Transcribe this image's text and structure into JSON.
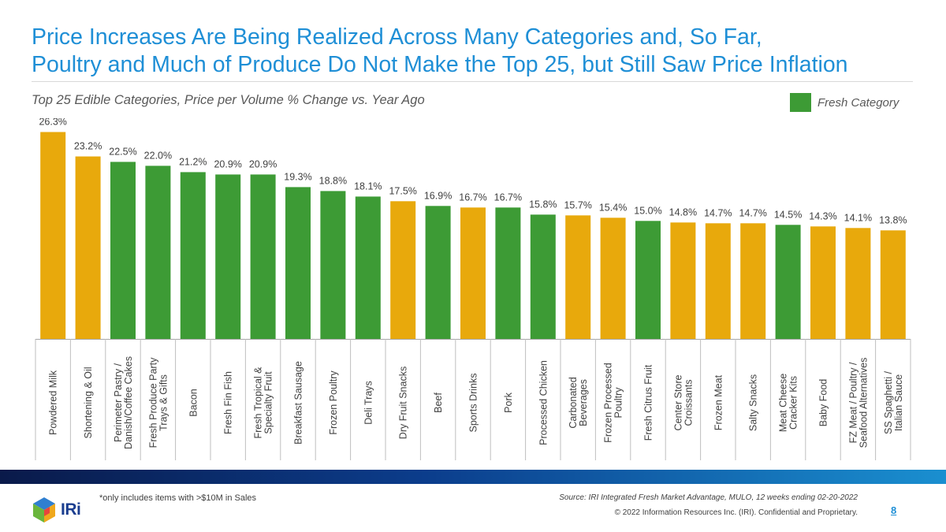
{
  "header": {
    "title_line1": "Price Increases Are Being Realized Across Many Categories and, So Far,",
    "title_line2": "Poultry and Much of Produce Do Not Make the Top 25, but Still Saw Price Inflation",
    "subtitle": "Top 25 Edible Categories, Price per Volume % Change vs. Year Ago"
  },
  "legend": {
    "label": "Fresh Category",
    "color": "#3d9b35"
  },
  "colors": {
    "fresh": "#3d9b35",
    "other": "#e8a90c"
  },
  "chart_data": {
    "type": "bar",
    "title": "Top 25 Edible Categories, Price per Volume % Change vs. Year Ago",
    "categories": [
      "Powdered Milk",
      "Shortening & Oil",
      "Perimeter Pastry / Danish/Coffee Cakes",
      "Fresh Produce Party Trays & Gifts",
      "Bacon",
      "Fresh Fin Fish",
      "Fresh Tropical & Specialty Fruit",
      "Breakfast Sausage",
      "Frozen Poultry",
      "Deli Trays",
      "Dry Fruit Snacks",
      "Beef",
      "Sports Drinks",
      "Pork",
      "Processed Chicken",
      "Carbonated Beverages",
      "Frozen Processed Poultry",
      "Fresh Citrus Fruit",
      "Center Store Croissants",
      "Frozen Meat",
      "Salty Snacks",
      "Meat Cheese Cracker Kits",
      "Baby Food",
      "FZ Meat / Poultry / Seafood Alternatives",
      "SS Spaghetti / Italian Sauce"
    ],
    "category_lines": [
      [
        "Powdered Milk"
      ],
      [
        "Shortening & Oil"
      ],
      [
        "Perimeter Pastry /",
        "Danish/Coffee Cakes"
      ],
      [
        "Fresh Produce Party",
        "Trays & Gifts"
      ],
      [
        "Bacon"
      ],
      [
        "Fresh Fin Fish"
      ],
      [
        "Fresh Tropical &",
        "Specialty Fruit"
      ],
      [
        "Breakfast Sausage"
      ],
      [
        "Frozen Poultry"
      ],
      [
        "Deli Trays"
      ],
      [
        "Dry Fruit Snacks"
      ],
      [
        "Beef"
      ],
      [
        "Sports Drinks"
      ],
      [
        "Pork"
      ],
      [
        "Processed Chicken"
      ],
      [
        "Carbonated",
        "Beverages"
      ],
      [
        "Frozen Processed",
        "Poultry"
      ],
      [
        "Fresh Citrus Fruit"
      ],
      [
        "Center Store",
        "Croissants"
      ],
      [
        "Frozen Meat"
      ],
      [
        "Salty Snacks"
      ],
      [
        "Meat Cheese",
        "Cracker Kits"
      ],
      [
        "Baby Food"
      ],
      [
        "FZ Meat / Poultry /",
        "Seafood Alternatives"
      ],
      [
        "SS Spaghetti /",
        "Italian Sauce"
      ]
    ],
    "values": [
      26.3,
      23.2,
      22.5,
      22.0,
      21.2,
      20.9,
      20.9,
      19.3,
      18.8,
      18.1,
      17.5,
      16.9,
      16.7,
      16.7,
      15.8,
      15.7,
      15.4,
      15.0,
      14.8,
      14.7,
      14.7,
      14.5,
      14.3,
      14.1,
      13.8
    ],
    "value_labels": [
      "26.3%",
      "23.2%",
      "22.5%",
      "22.0%",
      "21.2%",
      "20.9%",
      "20.9%",
      "19.3%",
      "18.8%",
      "18.1%",
      "17.5%",
      "16.9%",
      "16.7%",
      "16.7%",
      "15.8%",
      "15.7%",
      "15.4%",
      "15.0%",
      "14.8%",
      "14.7%",
      "14.7%",
      "14.5%",
      "14.3%",
      "14.1%",
      "13.8%"
    ],
    "fresh": [
      false,
      false,
      true,
      true,
      true,
      true,
      true,
      true,
      true,
      true,
      false,
      true,
      false,
      true,
      true,
      false,
      false,
      true,
      false,
      false,
      false,
      true,
      false,
      false,
      false
    ],
    "ylim": [
      0,
      30
    ],
    "legend": "top-right",
    "grid": false
  },
  "footer": {
    "logo_text": "IRi",
    "footnote": "*only includes items with >$10M in Sales",
    "source": "Source: IRI Integrated Fresh Market Advantage, MULO, 12 weeks ending 02-20-2022",
    "copyright": "© 2022 Information Resources Inc. (IRI). Confidential and Proprietary.",
    "page_number": "8"
  }
}
